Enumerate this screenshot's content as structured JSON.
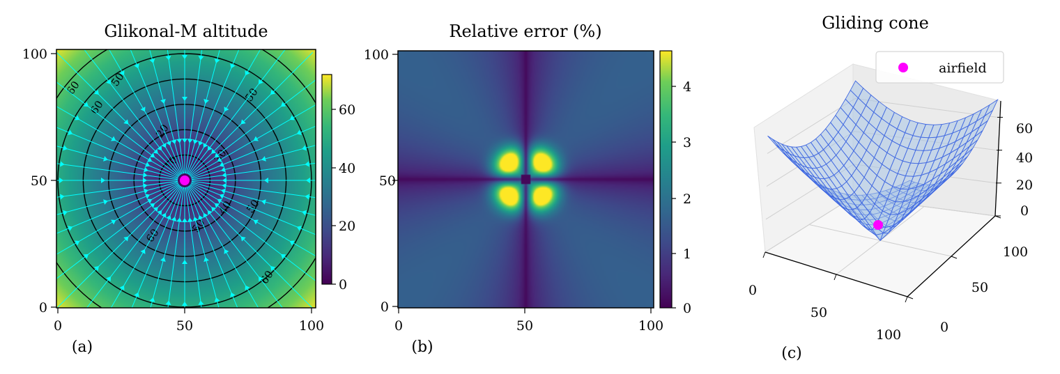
{
  "chart_data": [
    {
      "type": "heatmap",
      "panel_label": "(a)",
      "title": "Glikonal-M altitude",
      "colormap": "viridis",
      "xlim": [
        0,
        100
      ],
      "ylim": [
        0,
        100
      ],
      "xticks": [
        "0",
        "50",
        "100"
      ],
      "yticks": [
        "0",
        "50",
        "100"
      ],
      "colorbar": {
        "min": 0,
        "max": 72,
        "ticks": [
          "0",
          "20",
          "40",
          "60"
        ]
      },
      "contour_levels": [
        10,
        20,
        30,
        40,
        50,
        60
      ],
      "contour_labels": [
        "10",
        "20",
        "30",
        "40",
        "50",
        "60"
      ],
      "airfield": {
        "x": 50,
        "y": 50,
        "color": "#ff00ff"
      },
      "streamline_color": "#00ffff"
    },
    {
      "type": "heatmap",
      "panel_label": "(b)",
      "title": "Relative error (%)",
      "colormap": "viridis",
      "xlim": [
        0,
        100
      ],
      "ylim": [
        0,
        100
      ],
      "xticks": [
        "0",
        "50",
        "100"
      ],
      "yticks": [
        "0",
        "50",
        "100"
      ],
      "colorbar": {
        "min": 0,
        "max": 4.6,
        "ticks": [
          "0",
          "1",
          "2",
          "3",
          "4"
        ]
      }
    },
    {
      "type": "surface3d",
      "panel_label": "(c)",
      "title": "Gliding cone",
      "xticks": [
        "0",
        "50",
        "100"
      ],
      "yticks": [
        "0",
        "50",
        "100"
      ],
      "zticks": [
        "0",
        "20",
        "40",
        "60"
      ],
      "zlim": [
        0,
        72
      ],
      "surface_color": "#4169e1",
      "legend": [
        {
          "label": "airfield",
          "color": "#ff00ff"
        }
      ],
      "airfield": {
        "x": 50,
        "y": 50,
        "z": 0
      }
    }
  ]
}
